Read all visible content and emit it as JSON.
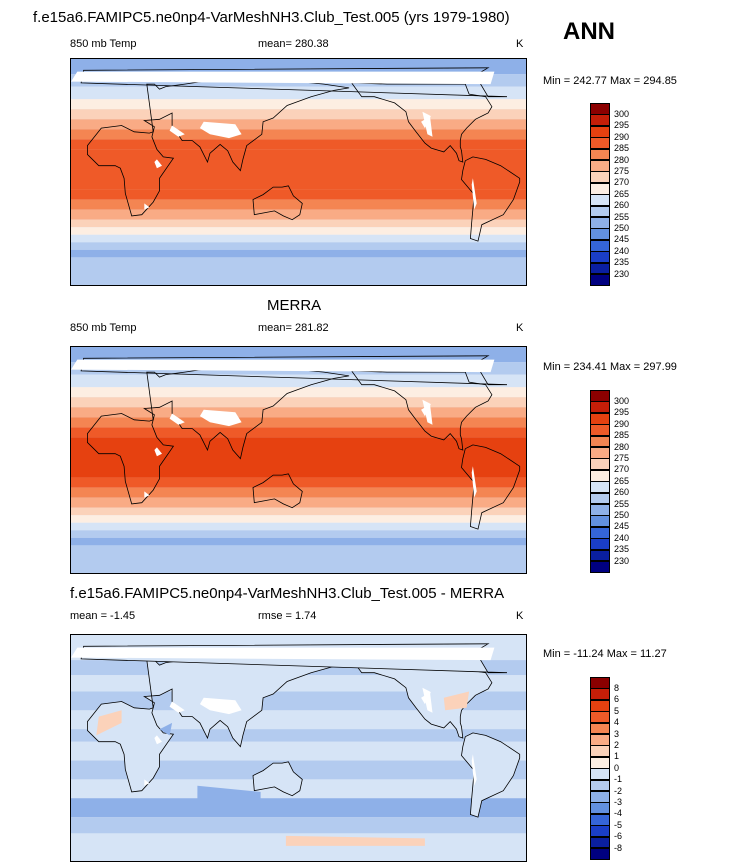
{
  "season": "ANN",
  "panels": [
    {
      "title": "f.e15a6.FAMIPC5.ne0np4-VarMeshNH3.Club_Test.005 (yrs 1979-1980)",
      "variable": "850 mb Temp",
      "stat_label": "mean= 280.38",
      "stat2_label": "",
      "units": "K",
      "minmax": "Min = 242.77 Max = 294.85"
    },
    {
      "title": "MERRA",
      "variable": "850 mb Temp",
      "stat_label": "mean= 281.82",
      "stat2_label": "",
      "units": "K",
      "minmax": "Min = 234.41 Max = 297.99"
    },
    {
      "title": "f.e15a6.FAMIPC5.ne0np4-VarMeshNH3.Club_Test.005 - MERRA",
      "variable": "mean =  -1.45",
      "stat_label": "rmse =   1.74",
      "stat2_label": "",
      "units": "K",
      "minmax": "Min = -11.24 Max =  11.27"
    }
  ],
  "chart_data": [
    {
      "type": "heatmap",
      "title": "f.e15a6.FAMIPC5.ne0np4-VarMeshNH3.Club_Test.005 (yrs 1979-1980)",
      "variable": "850 mb Temp",
      "units": "K",
      "mean": 280.38,
      "min": 242.77,
      "max": 294.85,
      "levels": [
        300,
        295,
        290,
        285,
        280,
        275,
        270,
        265,
        260,
        255,
        250,
        245,
        240,
        235,
        230
      ],
      "colors": [
        "#8b0000",
        "#c41e08",
        "#e64110",
        "#ef5a28",
        "#f48552",
        "#f9ab85",
        "#fbd2ba",
        "#fdeee2",
        "#d6e4f6",
        "#b3cbef",
        "#8eb0e8",
        "#6290e0",
        "#3565d8",
        "#1a3ec8",
        "#0a1fa0",
        "#000080"
      ]
    },
    {
      "type": "heatmap",
      "title": "MERRA",
      "variable": "850 mb Temp",
      "units": "K",
      "mean": 281.82,
      "min": 234.41,
      "max": 297.99,
      "levels": [
        300,
        295,
        290,
        285,
        280,
        275,
        270,
        265,
        260,
        255,
        250,
        245,
        240,
        235,
        230
      ],
      "colors": [
        "#8b0000",
        "#c41e08",
        "#e64110",
        "#ef5a28",
        "#f48552",
        "#f9ab85",
        "#fbd2ba",
        "#fdeee2",
        "#d6e4f6",
        "#b3cbef",
        "#8eb0e8",
        "#6290e0",
        "#3565d8",
        "#1a3ec8",
        "#0a1fa0",
        "#000080"
      ]
    },
    {
      "type": "heatmap",
      "title": "f.e15a6.FAMIPC5.ne0np4-VarMeshNH3.Club_Test.005 - MERRA",
      "units": "K",
      "mean": -1.45,
      "rmse": 1.74,
      "min": -11.24,
      "max": 11.27,
      "levels": [
        8,
        6,
        5,
        4,
        3,
        2,
        1,
        0,
        -1,
        -2,
        -3,
        -4,
        -5,
        -6,
        -8
      ],
      "colors": [
        "#8b0000",
        "#c41e08",
        "#e64110",
        "#ef5a28",
        "#f48552",
        "#f9ab85",
        "#fbd2ba",
        "#fdeee2",
        "#d6e4f6",
        "#b3cbef",
        "#8eb0e8",
        "#6290e0",
        "#3565d8",
        "#1a3ec8",
        "#0a1fa0",
        "#000080"
      ]
    }
  ]
}
